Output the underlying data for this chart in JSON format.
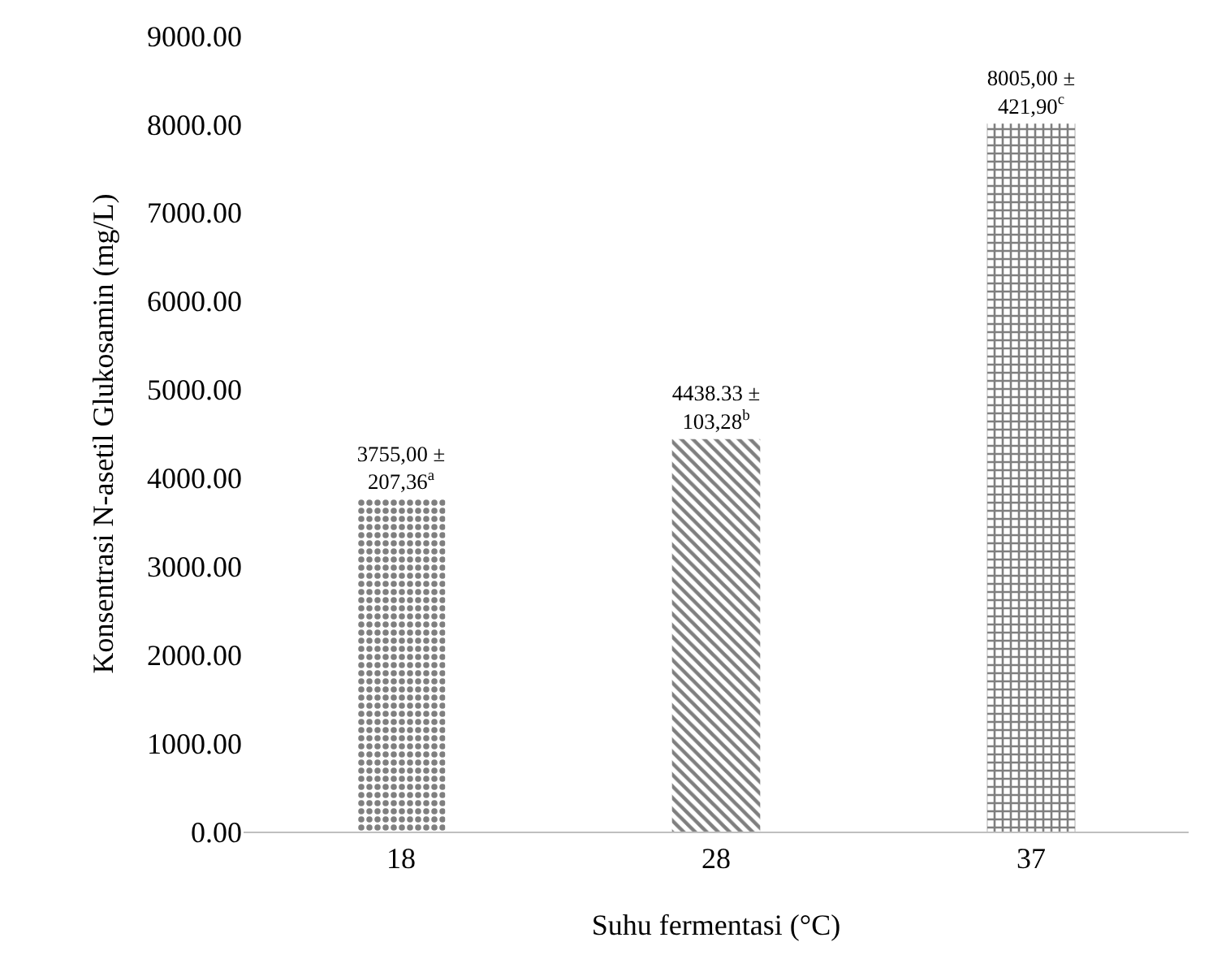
{
  "chart_data": {
    "type": "bar",
    "xlabel": "Suhu fermentasi (°C)",
    "ylabel": "Konsentrasi N-asetil Glukosamin (mg/L)",
    "categories": [
      "18",
      "28",
      "37"
    ],
    "values": [
      3755,
      4438.33,
      8005
    ],
    "value_labels": [
      "3755,00 ±\n207,36$^{a}$",
      "4438.33 ±\n103,28$^{b}$",
      "8005,00 ±\n421,90$^{c}$"
    ],
    "colors": [
      "#000000",
      "#000000",
      "#000000"
    ],
    "ylim": [
      0,
      9000
    ],
    "yticks": [
      {
        "value": 0,
        "label": "0.00"
      },
      {
        "value": 1000,
        "label": "1000.00"
      },
      {
        "value": 2000,
        "label": "2000.00"
      },
      {
        "value": 3000,
        "label": "3000.00"
      },
      {
        "value": 4000,
        "label": "4000.00"
      },
      {
        "value": 5000,
        "label": "5000.00"
      },
      {
        "value": 6000,
        "label": "6000.00"
      },
      {
        "value": 7000,
        "label": "7000.00"
      },
      {
        "value": 8000,
        "label": "8000.00"
      },
      {
        "value": 9000,
        "label": "9000.00"
      }
    ],
    "legend": false
  }
}
